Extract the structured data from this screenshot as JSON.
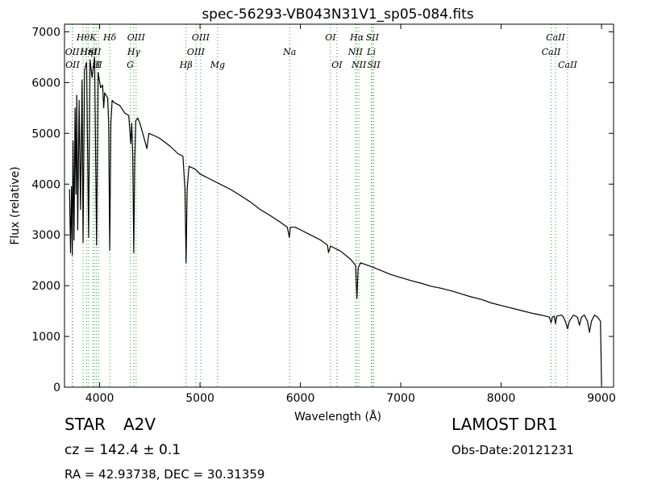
{
  "chart_data": {
    "type": "line",
    "title": "spec-56293-VB043N31V1_sp05-084.fits",
    "xlabel": "Wavelength (Å)",
    "ylabel": "Flux (relative)",
    "xlim": [
      3650,
      9120
    ],
    "ylim": [
      0,
      7150
    ],
    "xticks": [
      4000,
      5000,
      6000,
      7000,
      8000,
      9000
    ],
    "yticks": [
      0,
      1000,
      2000,
      3000,
      4000,
      5000,
      6000,
      7000
    ],
    "grid": false,
    "line_color": "#000000",
    "marker_color": "#2ca02c",
    "series": [
      {
        "points": [
          [
            3700,
            3900
          ],
          [
            3710,
            2650
          ],
          [
            3720,
            3950
          ],
          [
            3728,
            2600
          ],
          [
            3735,
            4850
          ],
          [
            3745,
            2900
          ],
          [
            3755,
            5500
          ],
          [
            3765,
            3800
          ],
          [
            3772,
            5750
          ],
          [
            3782,
            3100
          ],
          [
            3795,
            5650
          ],
          [
            3810,
            3500
          ],
          [
            3825,
            6050
          ],
          [
            3835,
            2850
          ],
          [
            3850,
            6250
          ],
          [
            3870,
            6400
          ],
          [
            3890,
            2950
          ],
          [
            3905,
            6450
          ],
          [
            3925,
            6100
          ],
          [
            3950,
            6500
          ],
          [
            3970,
            2800
          ],
          [
            3985,
            6200
          ],
          [
            4010,
            5900
          ],
          [
            4030,
            5950
          ],
          [
            4040,
            5500
          ],
          [
            4050,
            5800
          ],
          [
            4080,
            5700
          ],
          [
            4090,
            5200
          ],
          [
            4101,
            2700
          ],
          [
            4112,
            5200
          ],
          [
            4125,
            5650
          ],
          [
            4150,
            5600
          ],
          [
            4200,
            5550
          ],
          [
            4250,
            5400
          ],
          [
            4290,
            5350
          ],
          [
            4310,
            4800
          ],
          [
            4320,
            5200
          ],
          [
            4330,
            4500
          ],
          [
            4340,
            2650
          ],
          [
            4350,
            4500
          ],
          [
            4360,
            5250
          ],
          [
            4380,
            5300
          ],
          [
            4400,
            5200
          ],
          [
            4430,
            5000
          ],
          [
            4471,
            4700
          ],
          [
            4490,
            5000
          ],
          [
            4550,
            4950
          ],
          [
            4600,
            4900
          ],
          [
            4700,
            4750
          ],
          [
            4780,
            4600
          ],
          [
            4830,
            4550
          ],
          [
            4850,
            3900
          ],
          [
            4861,
            2450
          ],
          [
            4872,
            3900
          ],
          [
            4890,
            4350
          ],
          [
            4950,
            4300
          ],
          [
            5000,
            4200
          ],
          [
            5100,
            4100
          ],
          [
            5200,
            4000
          ],
          [
            5300,
            3900
          ],
          [
            5400,
            3780
          ],
          [
            5500,
            3650
          ],
          [
            5600,
            3500
          ],
          [
            5700,
            3380
          ],
          [
            5800,
            3250
          ],
          [
            5870,
            3150
          ],
          [
            5890,
            2950
          ],
          [
            5900,
            3150
          ],
          [
            5950,
            3150
          ],
          [
            6000,
            3100
          ],
          [
            6100,
            3000
          ],
          [
            6200,
            2900
          ],
          [
            6270,
            2800
          ],
          [
            6280,
            2650
          ],
          [
            6300,
            2780
          ],
          [
            6400,
            2680
          ],
          [
            6500,
            2520
          ],
          [
            6550,
            2400
          ],
          [
            6563,
            1750
          ],
          [
            6575,
            2350
          ],
          [
            6600,
            2450
          ],
          [
            6700,
            2380
          ],
          [
            6800,
            2300
          ],
          [
            6900,
            2220
          ],
          [
            7000,
            2160
          ],
          [
            7100,
            2100
          ],
          [
            7200,
            2050
          ],
          [
            7300,
            1990
          ],
          [
            7400,
            1950
          ],
          [
            7500,
            1900
          ],
          [
            7600,
            1840
          ],
          [
            7700,
            1780
          ],
          [
            7800,
            1730
          ],
          [
            7900,
            1660
          ],
          [
            8000,
            1610
          ],
          [
            8100,
            1560
          ],
          [
            8200,
            1510
          ],
          [
            8300,
            1460
          ],
          [
            8400,
            1420
          ],
          [
            8480,
            1380
          ],
          [
            8498,
            1270
          ],
          [
            8510,
            1380
          ],
          [
            8530,
            1400
          ],
          [
            8542,
            1250
          ],
          [
            8555,
            1400
          ],
          [
            8600,
            1420
          ],
          [
            8620,
            1380
          ],
          [
            8640,
            1300
          ],
          [
            8662,
            1150
          ],
          [
            8680,
            1300
          ],
          [
            8720,
            1420
          ],
          [
            8760,
            1380
          ],
          [
            8780,
            1220
          ],
          [
            8800,
            1380
          ],
          [
            8830,
            1420
          ],
          [
            8860,
            1300
          ],
          [
            8880,
            1080
          ],
          [
            8900,
            1300
          ],
          [
            8930,
            1420
          ],
          [
            8960,
            1380
          ],
          [
            8990,
            1300
          ],
          [
            9000,
            50
          ]
        ]
      }
    ],
    "line_markers": [
      {
        "wavelength": 3727,
        "label": "OII",
        "tier": 1
      },
      {
        "wavelength": 3730,
        "label": "OII",
        "tier": 2
      },
      {
        "wavelength": 3835,
        "label": "Hθ",
        "tier": 0
      },
      {
        "wavelength": 3870,
        "label": "Hη",
        "tier": 1
      },
      {
        "wavelength": 3889,
        "label": "HeI",
        "tier": 1
      },
      {
        "wavelength": 3934,
        "label": "K",
        "tier": 0
      },
      {
        "wavelength": 3950,
        "label": "SII",
        "tier": 1
      },
      {
        "wavelength": 3969,
        "label": "H",
        "tier": 2
      },
      {
        "wavelength": 3990,
        "label": "II",
        "tier": 2
      },
      {
        "wavelength": 4101,
        "label": "Hδ",
        "tier": 0
      },
      {
        "wavelength": 4305,
        "label": "G",
        "tier": 2
      },
      {
        "wavelength": 4340,
        "label": "Hγ",
        "tier": 1
      },
      {
        "wavelength": 4363,
        "label": "OIII",
        "tier": 0
      },
      {
        "wavelength": 4861,
        "label": "Hβ",
        "tier": 2
      },
      {
        "wavelength": 4959,
        "label": "OIII",
        "tier": 1
      },
      {
        "wavelength": 5007,
        "label": "OIII",
        "tier": 0
      },
      {
        "wavelength": 5175,
        "label": "Mg",
        "tier": 2
      },
      {
        "wavelength": 5893,
        "label": "Na",
        "tier": 1
      },
      {
        "wavelength": 6300,
        "label": "OI",
        "tier": 0
      },
      {
        "wavelength": 6364,
        "label": "OI",
        "tier": 2
      },
      {
        "wavelength": 6548,
        "label": "NII",
        "tier": 1
      },
      {
        "wavelength": 6563,
        "label": "Hα",
        "tier": 0
      },
      {
        "wavelength": 6583,
        "label": "NII",
        "tier": 2
      },
      {
        "wavelength": 6707,
        "label": "Li",
        "tier": 1
      },
      {
        "wavelength": 6717,
        "label": "SII",
        "tier": 0
      },
      {
        "wavelength": 6731,
        "label": "SII",
        "tier": 2
      },
      {
        "wavelength": 8498,
        "label": "CaII",
        "tier": 1
      },
      {
        "wavelength": 8542,
        "label": "CaII",
        "tier": 0
      },
      {
        "wavelength": 8662,
        "label": "CaII",
        "tier": 2
      }
    ]
  },
  "info": {
    "object_class": "STAR",
    "subclass": "A2V",
    "cz_text": "cz = 142.4 ± 0.1",
    "radec_text": "RA = 42.93738, DEC = 30.31359",
    "survey": "LAMOST DR1",
    "obs_date": "Obs-Date:20121231"
  }
}
